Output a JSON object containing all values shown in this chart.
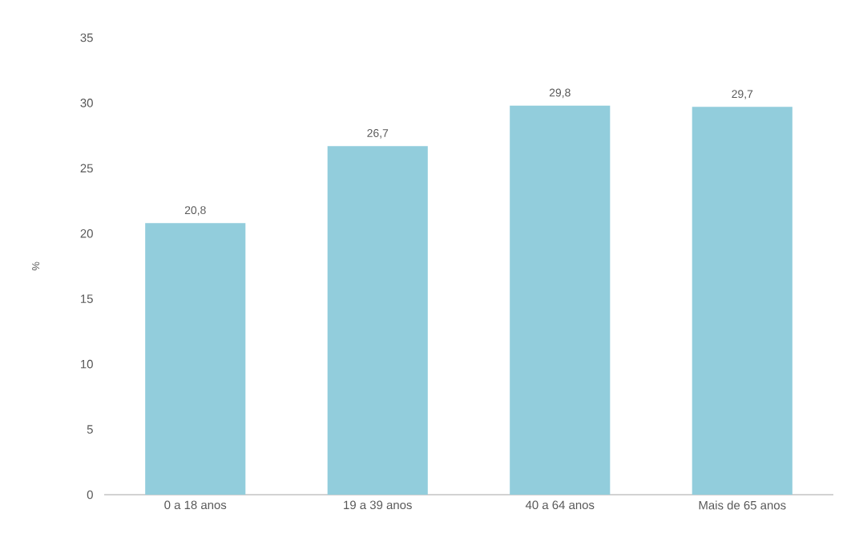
{
  "chart_data": {
    "type": "bar",
    "ylabel": "%",
    "categories": [
      "0 a 18 anos",
      "19 a 39 anos",
      "40 a 64 anos",
      "Mais de 65 anos"
    ],
    "values": [
      20.8,
      26.7,
      29.8,
      29.7
    ],
    "color": "#92cddc",
    "value_labels": [
      "20,8",
      "26,7",
      "29,8",
      "29,7"
    ],
    "ylim": [
      0,
      35
    ],
    "yticks": [
      0,
      5,
      10,
      15,
      20,
      25,
      30,
      35
    ],
    "grid": false
  }
}
